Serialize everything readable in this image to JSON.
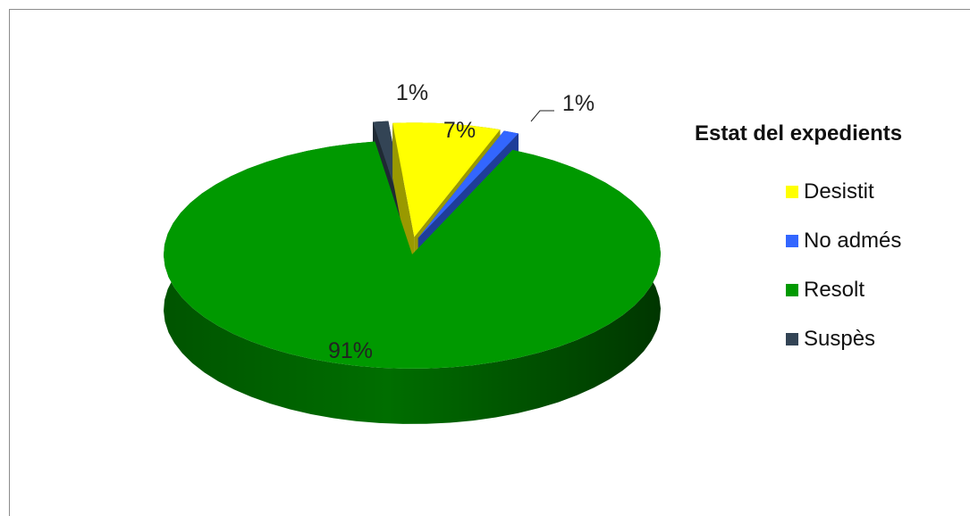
{
  "chart_data": {
    "type": "pie",
    "title": "",
    "legend_title": "Estat del expedients",
    "legend_position": "right",
    "slices": [
      {
        "name": "Desistit",
        "value": 7,
        "label": "7%",
        "color": "#ffff00"
      },
      {
        "name": "No admés",
        "value": 1,
        "label": "1%",
        "color": "#3366ff"
      },
      {
        "name": "Resolt",
        "value": 91,
        "label": "91%",
        "color": "#009900"
      },
      {
        "name": "Suspès",
        "value": 1,
        "label": "1%",
        "color": "#334455"
      }
    ]
  }
}
